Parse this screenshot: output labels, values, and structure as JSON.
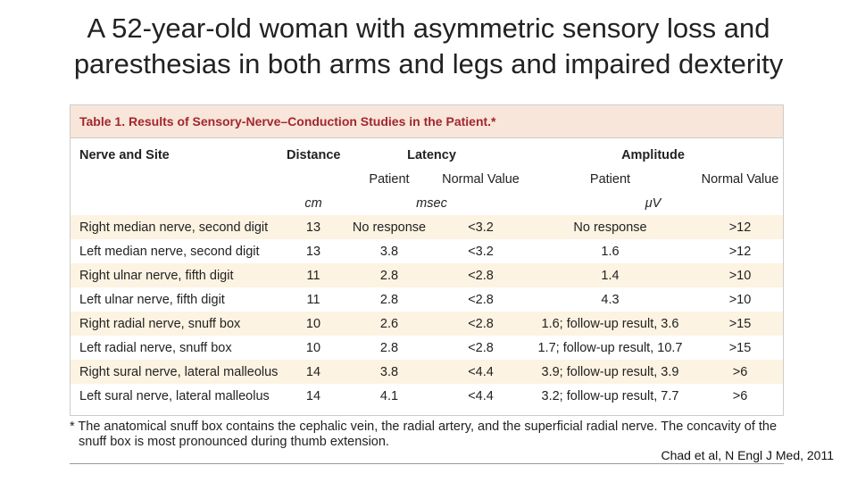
{
  "slide": {
    "title": [
      "A 52-year-old woman with asymmetric sensory loss and",
      "paresthesias in both arms and legs and impaired dexterity"
    ],
    "citation": "Chad et al, N Engl J Med, 2011"
  },
  "table": {
    "caption": "Table 1. Results of Sensory-Nerve–Conduction Studies in the Patient.*",
    "group_headers": [
      "Nerve and Site",
      "Distance",
      "Latency",
      "Amplitude"
    ],
    "sub_headers": [
      "Patient",
      "Normal Value",
      "Patient",
      "Normal Value"
    ],
    "units": [
      "cm",
      "msec",
      "μV"
    ],
    "rows": [
      [
        "Right median nerve, second digit",
        "13",
        "No response",
        "<3.2",
        "No response",
        ">12"
      ],
      [
        "Left median nerve, second digit",
        "13",
        "3.8",
        "<3.2",
        "1.6",
        ">12"
      ],
      [
        "Right ulnar nerve, fifth digit",
        "11",
        "2.8",
        "<2.8",
        "1.4",
        ">10"
      ],
      [
        "Left ulnar nerve, fifth digit",
        "11",
        "2.8",
        "<2.8",
        "4.3",
        ">10"
      ],
      [
        "Right radial nerve, snuff box",
        "10",
        "2.6",
        "<2.8",
        "1.6; follow-up result, 3.6",
        ">15"
      ],
      [
        "Left radial nerve, snuff box",
        "10",
        "2.8",
        "<2.8",
        "1.7; follow-up result, 10.7",
        ">15"
      ],
      [
        "Right sural nerve, lateral malleolus",
        "14",
        "3.8",
        "<4.4",
        "3.9; follow-up result, 3.9",
        ">6"
      ],
      [
        "Left sural nerve, lateral malleolus",
        "14",
        "4.1",
        "<4.4",
        "3.2; follow-up result, 7.7",
        ">6"
      ]
    ],
    "footnote": "* The anatomical snuff box contains the cephalic vein, the radial artery, and the superficial radial nerve. The concavity of the snuff box is most pronounced during thumb extension."
  }
}
